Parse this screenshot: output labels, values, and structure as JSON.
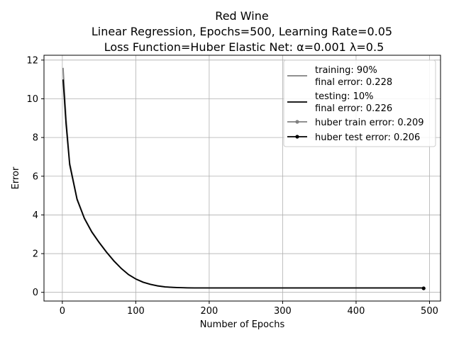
{
  "chart_data": {
    "type": "line",
    "title_lines": [
      "Red Wine",
      "Linear Regression, Epochs=500, Learning Rate=0.05",
      "Loss Function=Huber Elastic Net: α=0.001 λ=0.5"
    ],
    "xlabel": "Number of Epochs",
    "ylabel": "Error",
    "xlim": [
      -25,
      515
    ],
    "ylim": [
      -0.45,
      12.25
    ],
    "xticks": [
      0,
      100,
      200,
      300,
      400,
      500
    ],
    "yticks": [
      0,
      2,
      4,
      6,
      8,
      10,
      12
    ],
    "grid": true,
    "legend_position": "top-right",
    "series": [
      {
        "name": "training: 90%\nfinal error: 0.228",
        "color": "#808080",
        "marker": "none",
        "x": [
          1,
          5,
          10,
          20,
          30,
          40,
          50,
          60,
          70,
          80,
          90,
          100,
          110,
          120,
          130,
          140,
          150,
          160,
          170,
          180,
          190,
          200,
          250,
          300,
          350,
          400,
          450,
          492
        ],
        "y": [
          11.6,
          9.0,
          6.7,
          4.85,
          3.85,
          3.15,
          2.6,
          2.1,
          1.65,
          1.25,
          0.93,
          0.7,
          0.53,
          0.42,
          0.34,
          0.29,
          0.26,
          0.245,
          0.235,
          0.23,
          0.229,
          0.228,
          0.228,
          0.228,
          0.228,
          0.228,
          0.228,
          0.228
        ]
      },
      {
        "name": "testing: 10%\nfinal error: 0.226",
        "color": "#000000",
        "marker": "none",
        "x": [
          1,
          5,
          10,
          20,
          30,
          40,
          50,
          60,
          70,
          80,
          90,
          100,
          110,
          120,
          130,
          140,
          150,
          160,
          170,
          180,
          190,
          200,
          250,
          300,
          350,
          400,
          450,
          492
        ],
        "y": [
          11.0,
          8.7,
          6.6,
          4.8,
          3.82,
          3.12,
          2.58,
          2.08,
          1.63,
          1.24,
          0.92,
          0.69,
          0.52,
          0.41,
          0.33,
          0.28,
          0.255,
          0.24,
          0.232,
          0.228,
          0.227,
          0.226,
          0.226,
          0.226,
          0.226,
          0.226,
          0.226,
          0.226
        ]
      },
      {
        "name": "huber train error: 0.209",
        "color": "#808080",
        "marker": "dot",
        "x": [
          492
        ],
        "y": [
          0.209
        ]
      },
      {
        "name": "huber test error: 0.206",
        "color": "#000000",
        "marker": "dot",
        "x": [
          492
        ],
        "y": [
          0.206
        ]
      }
    ]
  }
}
